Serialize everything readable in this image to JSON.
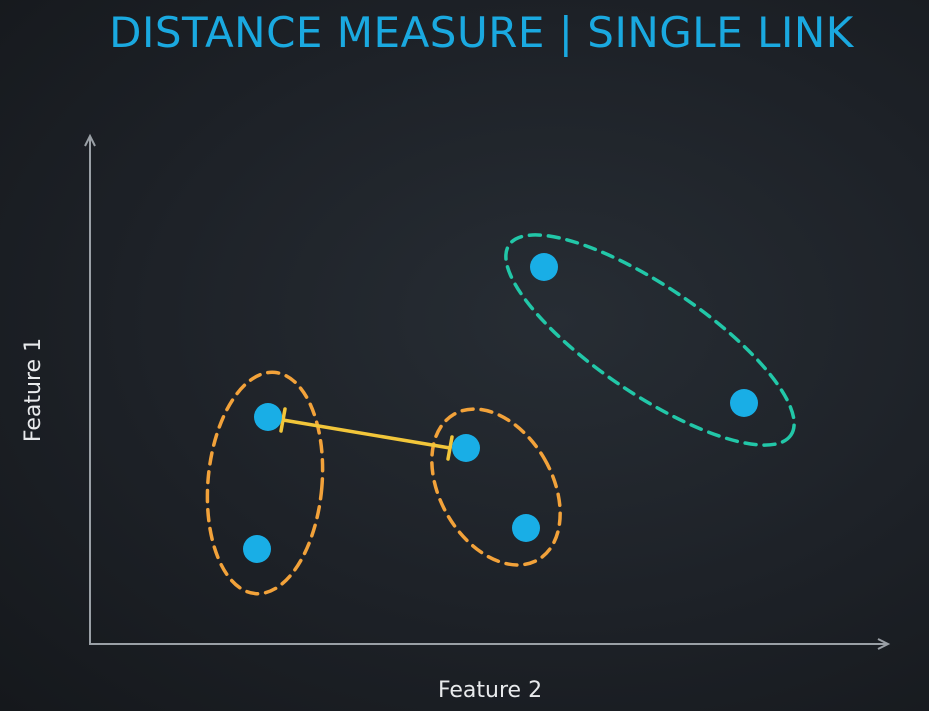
{
  "slide": {
    "title": "DISTANCE MEASURE | SINGLE LINK"
  },
  "axes": {
    "x_label": "Feature 2",
    "y_label": "Feature 1"
  },
  "colors": {
    "title": "#1aa9e0",
    "point": "#19aee6",
    "cluster_orange": "#f2a23a",
    "cluster_teal": "#22c7a8",
    "link": "#f2c63a",
    "axis": "#9aa0a6"
  },
  "clusters": [
    {
      "name": "left-orange-cluster",
      "color": "orange",
      "points": 2
    },
    {
      "name": "middle-orange-cluster",
      "color": "orange",
      "points": 2
    },
    {
      "name": "teal-cluster",
      "color": "teal",
      "points": 2
    }
  ],
  "link": {
    "type": "single link",
    "between": [
      "left-orange-cluster",
      "middle-orange-cluster"
    ]
  }
}
